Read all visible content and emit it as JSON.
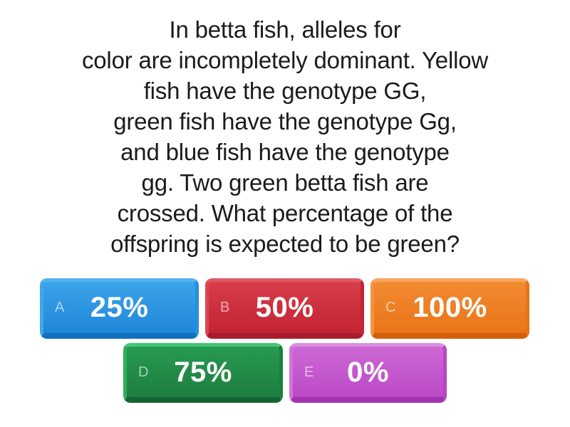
{
  "question": {
    "text": "In betta fish, alleles for\ncolor are incompletely dominant. Yellow\nfish have the genotype GG,\ngreen fish have the genotype Gg,\nand blue fish have the genotype\ngg. Two green betta fish are\ncrossed. What percentage of the\noffspring is expected to be green?"
  },
  "answers": [
    {
      "key": "A",
      "label": "25%",
      "color": "#2596e0"
    },
    {
      "key": "B",
      "label": "50%",
      "color": "#ce2838"
    },
    {
      "key": "C",
      "label": "100%",
      "color": "#ef7d1f"
    },
    {
      "key": "D",
      "label": "75%",
      "color": "#218a45"
    },
    {
      "key": "E",
      "label": "0%",
      "color": "#c75fd0"
    }
  ],
  "colors": {
    "background": "#ffffff",
    "question_text": "#1b1b1b",
    "answer_text": "#ffffff",
    "answer_key_text": "rgba(255,255,255,0.6)"
  }
}
